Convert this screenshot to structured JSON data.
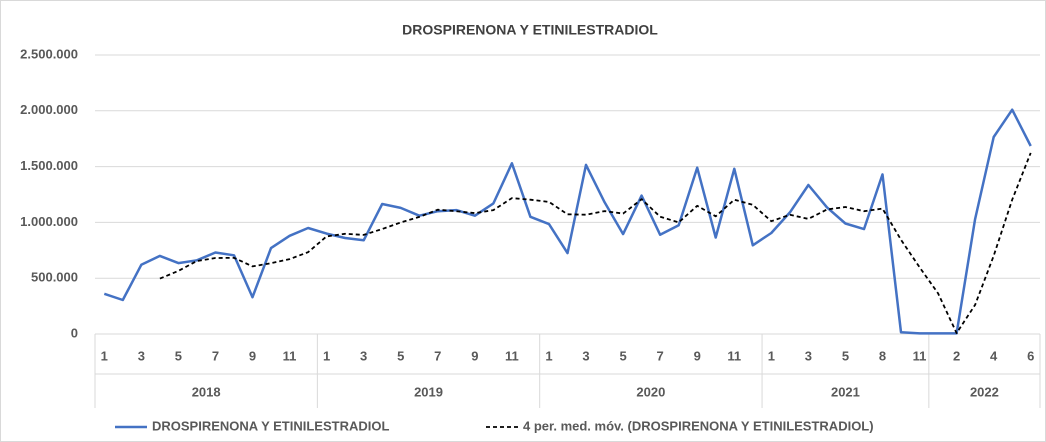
{
  "chart_data": {
    "type": "line",
    "title": "DROSPIRENONA Y ETINILESTRADIOL",
    "categories": [
      1,
      null,
      3,
      null,
      5,
      null,
      7,
      null,
      9,
      null,
      11,
      null,
      1,
      null,
      3,
      null,
      5,
      null,
      7,
      null,
      9,
      null,
      11,
      null,
      1,
      null,
      3,
      null,
      5,
      null,
      7,
      null,
      9,
      null,
      11,
      null,
      1,
      null,
      3,
      null,
      5,
      null,
      8,
      null,
      11,
      null,
      2,
      null,
      4,
      null,
      6
    ],
    "groups": [
      {
        "name": "2018",
        "size": 12
      },
      {
        "name": "2019",
        "size": 12
      },
      {
        "name": "2020",
        "size": 12
      },
      {
        "name": "2021",
        "size": 9
      },
      {
        "name": "2022",
        "size": 6
      }
    ],
    "series": [
      {
        "name": "DROSPIRENONA Y ETINILESTRADIOL",
        "color": "#4472c4",
        "dash": false,
        "values": [
          360000,
          305000,
          620000,
          700000,
          635000,
          660000,
          730000,
          705000,
          330000,
          770000,
          880000,
          950000,
          900000,
          860000,
          840000,
          1165000,
          1130000,
          1060000,
          1100000,
          1110000,
          1060000,
          1170000,
          1530000,
          1050000,
          985000,
          725000,
          1515000,
          1180000,
          895000,
          1240000,
          890000,
          975000,
          1490000,
          865000,
          1480000,
          795000,
          905000,
          1090000,
          1335000,
          1135000,
          990000,
          940000,
          1430000,
          15000,
          5000,
          5000,
          5000,
          1030000,
          1765000,
          2010000,
          1685000
        ]
      },
      {
        "name": "4 per. med. móv. (DROSPIRENONA Y ETINILESTRADIOL)",
        "color": "#000000",
        "dash": true,
        "values": [
          null,
          null,
          null,
          496000,
          565000,
          654000,
          681000,
          683000,
          606000,
          634000,
          671000,
          733000,
          875000,
          898000,
          888000,
          941000,
          999000,
          1049000,
          1114000,
          1100000,
          1083000,
          1110000,
          1218000,
          1203000,
          1184000,
          1073000,
          1069000,
          1101000,
          1079000,
          1208000,
          1051000,
          1000000,
          1149000,
          1055000,
          1203000,
          1158000,
          1011000,
          1068000,
          1031000,
          1116000,
          1138000,
          1100000,
          1124000,
          844000,
          598000,
          364000,
          8000,
          261000,
          701000,
          1203000,
          1623000
        ]
      }
    ],
    "ylim": [
      0,
      2500000
    ],
    "yticks": [
      0,
      {
        "value": 500000,
        "label": "500.000"
      },
      {
        "value": 1000000,
        "label": "1.000.000"
      },
      {
        "value": 1500000,
        "label": "1.500.000"
      },
      {
        "value": 2000000,
        "label": "2.000.000"
      },
      {
        "value": 2500000,
        "label": "2.500.000"
      }
    ],
    "grid": true
  }
}
